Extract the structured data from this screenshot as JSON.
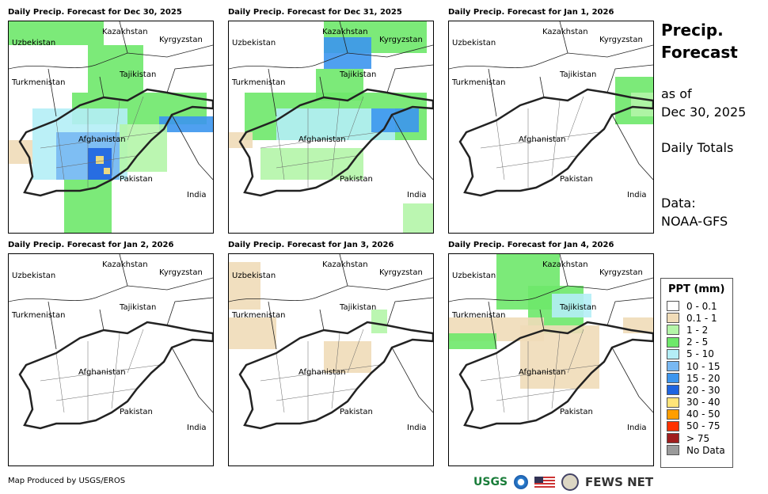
{
  "panels": [
    {
      "title": "Daily Precip. Forecast for Dec 30, 2025"
    },
    {
      "title": "Daily Precip. Forecast for Dec 31, 2025"
    },
    {
      "title": "Daily Precip. Forecast for Jan 1, 2026"
    },
    {
      "title": "Daily Precip. Forecast for Jan 2, 2026"
    },
    {
      "title": "Daily Precip. Forecast for Jan 3, 2026"
    },
    {
      "title": "Daily Precip. Forecast for Jan 4, 2026"
    }
  ],
  "countries": [
    "Kazakhstan",
    "Kyrgyzstan",
    "Uzbekistan",
    "Tajikistan",
    "Turkmenistan",
    "Afghanistan",
    "Pakistan",
    "India"
  ],
  "side": {
    "title1": "Precip.",
    "title2": "Forecast",
    "asof": "as of",
    "date": "Dec 30, 2025",
    "totals": "Daily Totals",
    "data_label": "Data:",
    "data_source": "NOAA-GFS"
  },
  "legend": {
    "title": "PPT (mm)",
    "items": [
      {
        "label": "0 - 0.1",
        "color": "#ffffff"
      },
      {
        "label": "0.1 - 1",
        "color": "#f0dcb8"
      },
      {
        "label": "1 - 2",
        "color": "#b4f5a8"
      },
      {
        "label": "2 - 5",
        "color": "#6ee86a"
      },
      {
        "label": "5 - 10",
        "color": "#b4eef6"
      },
      {
        "label": "10 - 15",
        "color": "#78b8f2"
      },
      {
        "label": "15 - 20",
        "color": "#3c96ee"
      },
      {
        "label": "20 - 30",
        "color": "#1e64e0"
      },
      {
        "label": "30 - 40",
        "color": "#ffe478"
      },
      {
        "label": "40 - 50",
        "color": "#ff9e00"
      },
      {
        "label": "50 - 75",
        "color": "#ff3200"
      },
      {
        "label": "> 75",
        "color": "#a01e1e"
      },
      {
        "label": "No Data",
        "color": "#9a9a9a"
      }
    ]
  },
  "footer": {
    "credit": "Map Produced by USGS/EROS",
    "usgs": "USGS",
    "fews": "FEWS NET"
  }
}
